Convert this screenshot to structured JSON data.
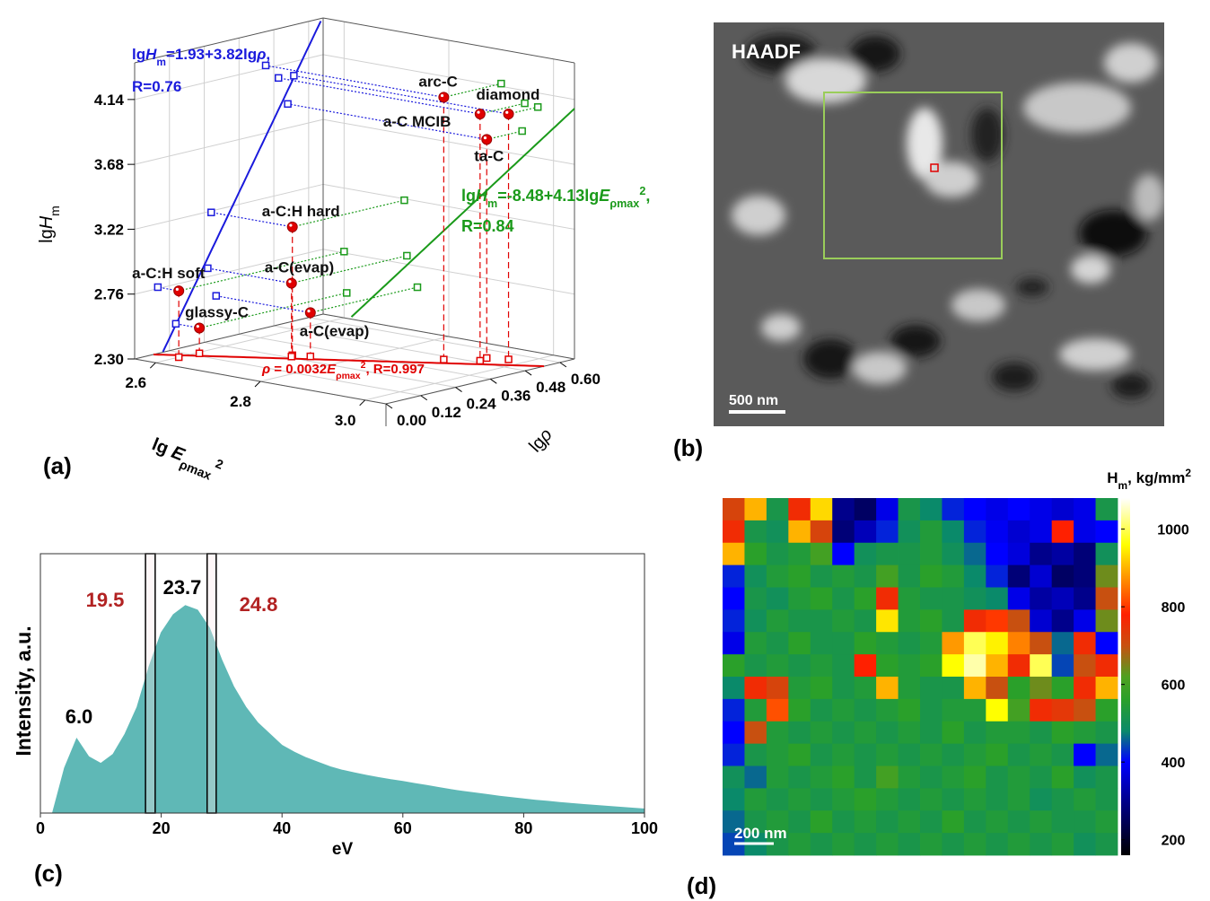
{
  "chart_data": [
    {
      "type": "scatter3d",
      "panel_label": "(a)",
      "xlabel": [
        "lg ",
        {
          "t": "E",
          "style": "italic"
        },
        {
          "t": "ρmax",
          "style": "sub"
        },
        {
          "t": "2",
          "style": "sup"
        }
      ],
      "ylabel": [
        "lg",
        {
          "t": "ρ",
          "style": "italic"
        }
      ],
      "zlabel": [
        "lg",
        {
          "t": "H",
          "style": "italic"
        },
        {
          "t": "m",
          "style": "sub"
        }
      ],
      "labels": [
        "a-C:H soft",
        "glassy-C",
        "a-C:H hard",
        "a-C(evap)",
        "a-C(evap)",
        "arc-C",
        "a-C MCIB",
        "diamond",
        "ta-C"
      ],
      "x": [
        2.6,
        2.605,
        2.715,
        2.72,
        2.74,
        2.9,
        2.945,
        2.97,
        2.94
      ],
      "y": [
        0.08,
        0.142,
        0.264,
        0.252,
        0.281,
        0.452,
        0.496,
        0.549,
        0.528
      ],
      "z": [
        2.77,
        2.48,
        3.21,
        2.82,
        2.61,
        4.16,
        4.05,
        4.04,
        3.85
      ],
      "xlim": [
        2.56,
        3.04
      ],
      "ylim": [
        0,
        0.65
      ],
      "zlim": [
        2.3,
        4.4
      ],
      "xticks": [
        2.6,
        2.8,
        {
          "value": 3,
          "label": "3.0"
        }
      ],
      "yticks": [
        {
          "value": 0,
          "label": "0.00"
        },
        0.12,
        0.24,
        0.36,
        0.48,
        {
          "value": 0.6,
          "label": "0.60"
        }
      ],
      "zticks": [
        {
          "value": 2.3,
          "label": "2.30"
        },
        2.76,
        3.22,
        3.68,
        4.14
      ],
      "point_color": "#e00000",
      "grid": true,
      "fit_h_rho": {
        "color": "#1a1adc",
        "intercept": 1.93,
        "slope": 3.82,
        "formula": [
          "lg",
          {
            "t": "H",
            "style": "italic"
          },
          {
            "t": "m",
            "style": "sub"
          },
          "=1.93+3.82lg",
          {
            "t": "ρ",
            "style": "italic"
          },
          ","
        ],
        "r_text": "R=0.76"
      },
      "fit_h_e": {
        "color": "#1a9a1a",
        "intercept": -8.48,
        "slope": 4.13,
        "formula": [
          "lg",
          {
            "t": "H",
            "style": "italic"
          },
          {
            "t": "m",
            "style": "sub"
          },
          "=-8.48+4.13lg",
          {
            "t": "E",
            "style": "italic"
          },
          {
            "t": "ρmax",
            "style": "sub"
          },
          {
            "t": "2",
            "style": "sup"
          },
          ","
        ],
        "r_text": "R=0.84"
      },
      "fit_rho_e": {
        "color": "#e00000",
        "coefficient": 0.0032,
        "formula": [
          {
            "t": "ρ",
            "style": "italic"
          },
          " = 0.0032",
          {
            "t": "E",
            "style": "italic"
          },
          {
            "t": "ρmax",
            "style": "sub"
          },
          {
            "t": "2",
            "style": "sup"
          },
          ", R=0.997"
        ]
      }
    },
    {
      "type": "area",
      "panel_label": "(c)",
      "xlabel": "eV",
      "ylabel": "Intensity, a.u.",
      "x": [
        0,
        2,
        4,
        6,
        8,
        10,
        12,
        14,
        16,
        18,
        20,
        22,
        24,
        26,
        28,
        30,
        32,
        34,
        36,
        38,
        40,
        42,
        44,
        46,
        48,
        50,
        52,
        54,
        56,
        58,
        60,
        62,
        64,
        66,
        68,
        70,
        72,
        74,
        76,
        78,
        80,
        82,
        84,
        86,
        88,
        90,
        92,
        94,
        96,
        98,
        100
      ],
      "values": [
        0,
        0,
        0.2,
        0.33,
        0.25,
        0.22,
        0.26,
        0.35,
        0.47,
        0.65,
        0.8,
        0.88,
        0.92,
        0.9,
        0.82,
        0.68,
        0.56,
        0.47,
        0.4,
        0.35,
        0.3,
        0.27,
        0.245,
        0.225,
        0.205,
        0.19,
        0.178,
        0.167,
        0.157,
        0.148,
        0.14,
        0.131,
        0.122,
        0.113,
        0.104,
        0.096,
        0.089,
        0.082,
        0.075,
        0.069,
        0.063,
        0.057,
        0.052,
        0.047,
        0.042,
        0.038,
        0.034,
        0.03,
        0.026,
        0.022,
        0.018
      ],
      "color": "#5fb8b6",
      "xlim": [
        0,
        100
      ],
      "ylim": [
        0,
        1.15
      ],
      "xticks": [
        0,
        20,
        40,
        60,
        80,
        100
      ],
      "windows": [
        [
          17.4,
          19.0
        ],
        [
          27.6,
          29.1
        ]
      ],
      "annotations": [
        {
          "text": "6.0",
          "color": "#000000"
        },
        {
          "text": "19.5",
          "color": "#b22222"
        },
        {
          "text": "23.7",
          "color": "#000000"
        },
        {
          "text": "24.8",
          "color": "#b22222"
        }
      ]
    },
    {
      "type": "heatmap",
      "panel_label": "(d)",
      "scale_bar": "200 nm",
      "cbar_title": [
        "H",
        {
          "t": "m",
          "style": "sub"
        },
        ", kg/mm",
        {
          "t": "2",
          "style": "sup"
        }
      ],
      "clim": [
        160,
        1080
      ],
      "cbar_ticks": [
        1000,
        800,
        600,
        400,
        200
      ],
      "colormap": [
        {
          "value": 160,
          "color": "#000000"
        },
        {
          "value": 300,
          "color": "#00008b"
        },
        {
          "value": 400,
          "color": "#0000ff"
        },
        {
          "value": 480,
          "color": "#0a8a6a"
        },
        {
          "value": 560,
          "color": "#2aa02a"
        },
        {
          "value": 620,
          "color": "#50a020"
        },
        {
          "value": 700,
          "color": "#c85010"
        },
        {
          "value": 780,
          "color": "#ff2000"
        },
        {
          "value": 880,
          "color": "#ff9900"
        },
        {
          "value": 960,
          "color": "#ffff00"
        },
        {
          "value": 1080,
          "color": "#ffffff"
        }
      ],
      "values": [
        [
          720,
          900,
          520,
          760,
          930,
          300,
          260,
          380,
          520,
          480,
          420,
          400,
          380,
          400,
          380,
          360,
          380,
          520
        ],
        [
          760,
          520,
          500,
          900,
          720,
          280,
          340,
          420,
          500,
          540,
          480,
          420,
          390,
          360,
          380,
          780,
          380,
          400
        ],
        [
          900,
          560,
          520,
          540,
          600,
          400,
          500,
          520,
          520,
          540,
          500,
          460,
          400,
          370,
          300,
          320,
          280,
          500
        ],
        [
          420,
          500,
          540,
          560,
          520,
          540,
          520,
          600,
          520,
          560,
          540,
          480,
          420,
          280,
          360,
          260,
          280,
          640
        ],
        [
          400,
          520,
          500,
          540,
          560,
          520,
          560,
          760,
          540,
          520,
          520,
          500,
          480,
          380,
          320,
          340,
          300,
          700
        ],
        [
          420,
          500,
          540,
          520,
          520,
          540,
          520,
          940,
          540,
          560,
          520,
          760,
          800,
          700,
          360,
          300,
          380,
          640
        ],
        [
          380,
          540,
          520,
          560,
          520,
          520,
          560,
          540,
          520,
          540,
          880,
          1000,
          950,
          860,
          700,
          460,
          760,
          400
        ],
        [
          560,
          520,
          540,
          520,
          540,
          520,
          780,
          560,
          540,
          560,
          960,
          1040,
          900,
          760,
          1000,
          440,
          700,
          760
        ],
        [
          480,
          760,
          720,
          540,
          560,
          520,
          540,
          900,
          540,
          520,
          520,
          900,
          700,
          560,
          640,
          560,
          760,
          900
        ],
        [
          420,
          540,
          820,
          560,
          520,
          540,
          520,
          540,
          560,
          520,
          540,
          540,
          960,
          600,
          760,
          740,
          700,
          560
        ],
        [
          400,
          700,
          540,
          520,
          540,
          520,
          540,
          520,
          540,
          520,
          560,
          520,
          540,
          540,
          520,
          560,
          540,
          520
        ],
        [
          420,
          520,
          540,
          560,
          520,
          540,
          520,
          540,
          520,
          540,
          520,
          540,
          560,
          520,
          540,
          520,
          400,
          460
        ],
        [
          500,
          460,
          540,
          520,
          540,
          560,
          520,
          600,
          540,
          520,
          540,
          560,
          520,
          540,
          520,
          560,
          500,
          520
        ],
        [
          480,
          540,
          520,
          540,
          520,
          540,
          560,
          540,
          520,
          540,
          520,
          540,
          520,
          540,
          500,
          520,
          540,
          520
        ],
        [
          460,
          520,
          540,
          520,
          560,
          520,
          540,
          520,
          540,
          520,
          560,
          520,
          540,
          520,
          540,
          520,
          520,
          540
        ],
        [
          440,
          480,
          520,
          540,
          520,
          540,
          520,
          540,
          520,
          540,
          520,
          540,
          520,
          540,
          520,
          540,
          500,
          520
        ]
      ]
    }
  ],
  "image_panel": {
    "label": "HAADF",
    "scale_bar": "500 nm",
    "panel_label": "(b)"
  }
}
